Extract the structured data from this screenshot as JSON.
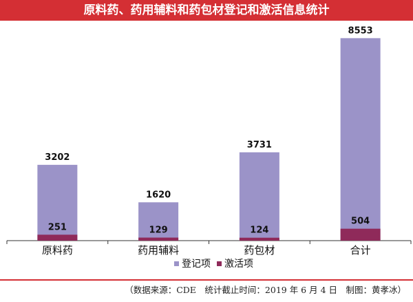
{
  "chart_data": {
    "type": "bar",
    "title": "原料药、药用辅料和药包材登记和激活信息统计",
    "categories": [
      "原料药",
      "药用辅料",
      "药包材",
      "合计"
    ],
    "series": [
      {
        "name": "登记项",
        "values": [
          3202,
          1620,
          3731,
          8553
        ],
        "color": "#9b93c8"
      },
      {
        "name": "激活项",
        "values": [
          251,
          129,
          124,
          504
        ],
        "color": "#8f2a5a"
      }
    ],
    "stacked": false,
    "overlay": true,
    "ylim": [
      0,
      9000
    ],
    "grid": false,
    "legend_position": "bottom",
    "source_note": "（数据来源：CDE　统计截止时间：2019 年 6 月 4 日　制图：黄孝冰）"
  },
  "colors": {
    "title_bar": "#d42f34",
    "axis": "#333333"
  }
}
